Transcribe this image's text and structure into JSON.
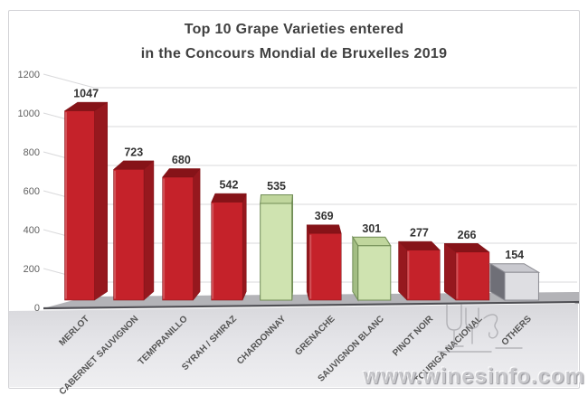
{
  "title": {
    "line1": "Top 10 Grape Varieties entered",
    "line2": "in the Concours Mondial de Bruxelles 2019"
  },
  "watermark": "www.winesinfo.com",
  "chart_data": {
    "type": "bar",
    "style": "3d-perspective",
    "title": "Top 10 Grape Varieties entered in the Concours Mondial de Bruxelles 2019",
    "categories": [
      "MERLOT",
      "CABERNET SAUVIGNON",
      "TEMPRANILLO",
      "SYRAH / SHIRAZ",
      "CHARDONNAY",
      "GRENACHE",
      "SAUVIGNON BLANC",
      "PINOT NOIR",
      "TOURIGA NACIONAL",
      "OTHERS"
    ],
    "values": [
      1047,
      723,
      680,
      542,
      535,
      369,
      301,
      277,
      266,
      154
    ],
    "bar_color_roles": [
      "red",
      "red",
      "red",
      "red",
      "green",
      "red",
      "green",
      "red",
      "red",
      "gray"
    ],
    "data_labels_shown": true,
    "xlabel": "",
    "ylabel": "",
    "ylim": [
      0,
      1200
    ],
    "yticks": [
      0,
      200,
      400,
      600,
      800,
      1000,
      1200
    ],
    "grid": true,
    "legend": "none"
  },
  "palette": {
    "red": {
      "front": "#c5222a",
      "side": "#96181e",
      "top": "#861318",
      "stroke": "#7e1116"
    },
    "green": {
      "front": "#cfe3b0",
      "side": "#a3bd84",
      "top": "#c0d69d",
      "stroke": "#708c55"
    },
    "gray": {
      "front": "#dedee2",
      "side": "#6f6f77",
      "top": "#c9c9cf",
      "stroke": "#8a8a91"
    },
    "floor_top": "#b3b3b7",
    "floor_edge": "#4f4f54",
    "grid_color": "#d9d9db",
    "axis_text": "#5f5f5f",
    "value_text": "#333333",
    "label_text": "#555555",
    "title_text": "#404040",
    "watermark_text": "#c6c6ca",
    "doodle_stroke": "#95959a"
  }
}
